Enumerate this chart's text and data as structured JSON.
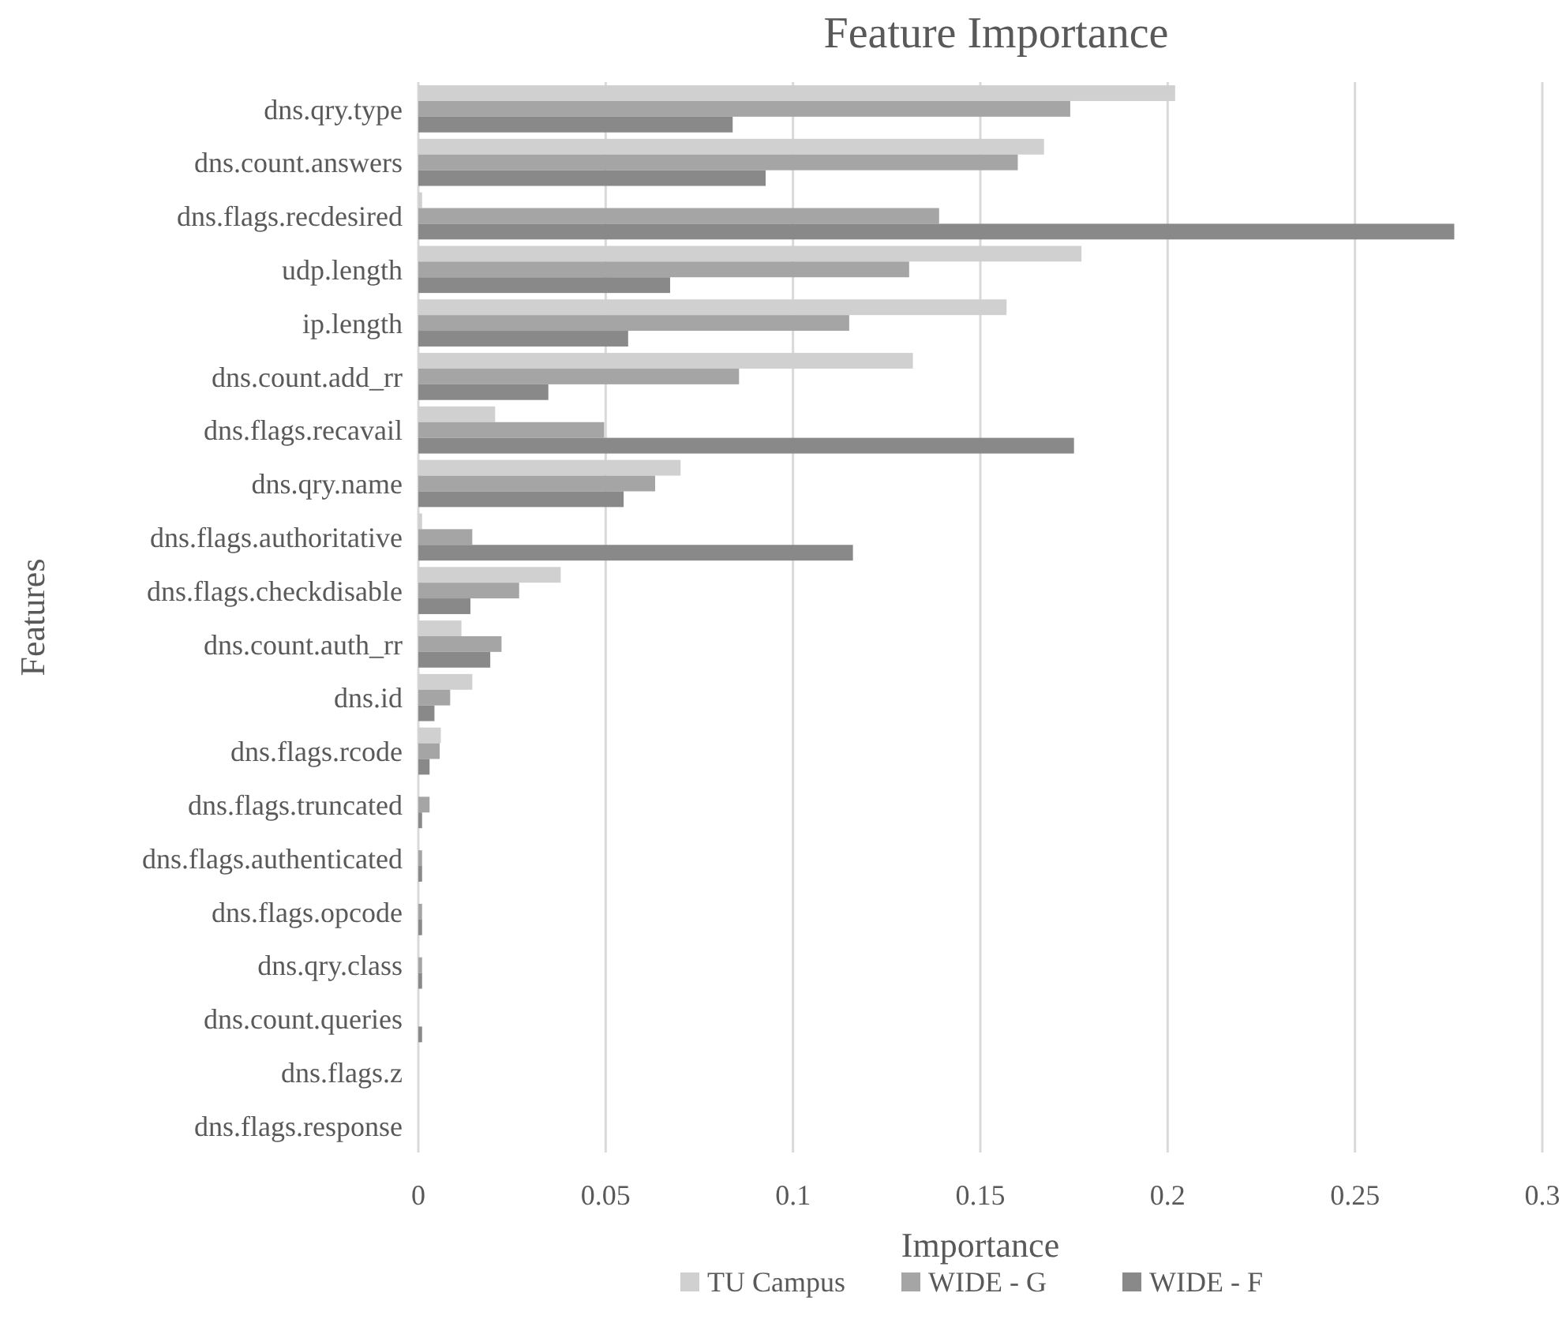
{
  "chart_data": {
    "type": "bar",
    "orientation": "horizontal",
    "title": "Feature Importance",
    "xlabel": "Importance",
    "ylabel": "Features",
    "categories": [
      "dns.qry.type",
      "dns.count.answers",
      "dns.flags.recdesired",
      "udp.length",
      "ip.length",
      "dns.count.add_rr",
      "dns.flags.recavail",
      "dns.qry.name",
      "dns.flags.authoritative",
      "dns.flags.checkdisable",
      "dns.count.auth_rr",
      "dns.id",
      "dns.flags.rcode",
      "dns.flags.truncated",
      "dns.flags.authenticated",
      "dns.flags.opcode",
      "dns.qry.class",
      "dns.count.queries",
      "dns.flags.z",
      "dns.flags.response"
    ],
    "series": [
      {
        "name": "TU Campus",
        "color": "#d0d0d0",
        "values": [
          0.202,
          0.167,
          0.001,
          0.177,
          0.157,
          0.132,
          0.0205,
          0.07,
          0.001,
          0.038,
          0.0115,
          0.0144,
          0.006,
          null,
          null,
          0,
          0,
          0,
          0,
          0
        ]
      },
      {
        "name": "WIDE - G",
        "color": "#a5a5a5",
        "values": [
          0.174,
          0.16,
          0.139,
          0.131,
          0.115,
          0.0856,
          0.0496,
          0.0632,
          0.0144,
          0.0269,
          0.0222,
          0.0085,
          0.0057,
          0.003,
          0.001,
          0.001,
          0.001,
          0,
          0,
          0
        ]
      },
      {
        "name": "WIDE - F",
        "color": "#898989",
        "values": [
          0.0839,
          0.0927,
          0.2765,
          0.0672,
          0.056,
          0.0347,
          0.175,
          0.0548,
          0.116,
          0.0139,
          0.0192,
          0.0043,
          0.003,
          0.001,
          0.001,
          0.001,
          0.001,
          0.001,
          0,
          0
        ]
      }
    ],
    "xlim": [
      0,
      0.3
    ],
    "xticks": [
      0,
      0.05,
      0.1,
      0.15,
      0.2,
      0.25,
      0.3
    ],
    "grid": "x",
    "legend": "bottom"
  }
}
